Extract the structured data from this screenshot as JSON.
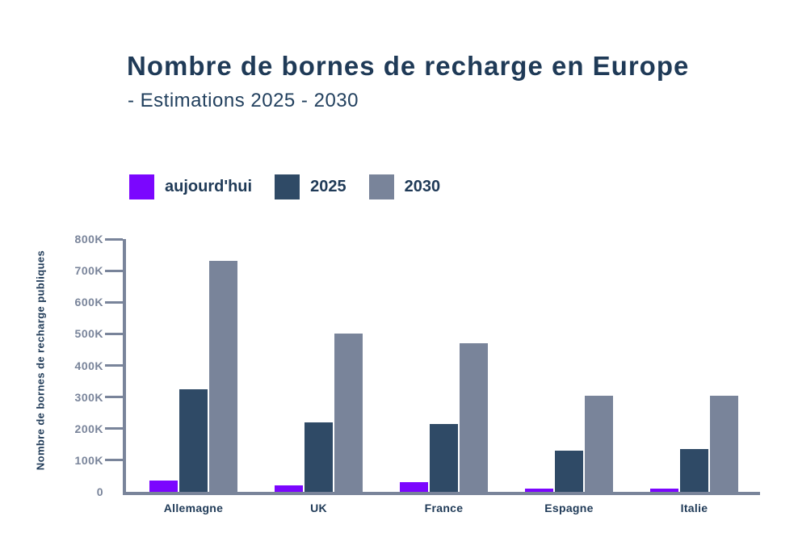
{
  "header": {
    "title": "Nombre de bornes de recharge en Europe",
    "subtitle": "- Estimations 2025 - 2030"
  },
  "colors": {
    "background": "#FFFFFF",
    "title_navy": "#1F3A57",
    "axis_slate": "#79849A",
    "tick_text": "#79849A",
    "accent_purple": "#7B06FE",
    "bar_navy": "#2F4A66",
    "bar_slate": "#79849A"
  },
  "chart_data": {
    "type": "bar",
    "title": "Nombre de bornes de recharge en Europe",
    "subtitle": "- Estimations 2025 - 2030",
    "categories": [
      "Allemagne",
      "UK",
      "France",
      "Espagne",
      "Italie"
    ],
    "series": [
      {
        "name": "aujourd'hui",
        "color": "#7B06FE",
        "values": [
          35000,
          20000,
          30000,
          10000,
          10000
        ]
      },
      {
        "name": "2025",
        "color": "#2F4A66",
        "values": [
          325000,
          220000,
          215000,
          130000,
          135000
        ]
      },
      {
        "name": "2030",
        "color": "#79849A",
        "values": [
          730000,
          500000,
          470000,
          305000,
          305000
        ]
      }
    ],
    "xlabel": "",
    "ylabel": "Nombre de bornes de recharge publiques",
    "ylim": [
      0,
      800000
    ],
    "yticks": [
      {
        "value": 0,
        "label": "0"
      },
      {
        "value": 100000,
        "label": "100K"
      },
      {
        "value": 200000,
        "label": "200K"
      },
      {
        "value": 300000,
        "label": "300K"
      },
      {
        "value": 400000,
        "label": "400K"
      },
      {
        "value": 500000,
        "label": "500K"
      },
      {
        "value": 600000,
        "label": "600K"
      },
      {
        "value": 700000,
        "label": "700K"
      },
      {
        "value": 800000,
        "label": "800K"
      }
    ],
    "legend_position": "top-left",
    "grid": false
  }
}
